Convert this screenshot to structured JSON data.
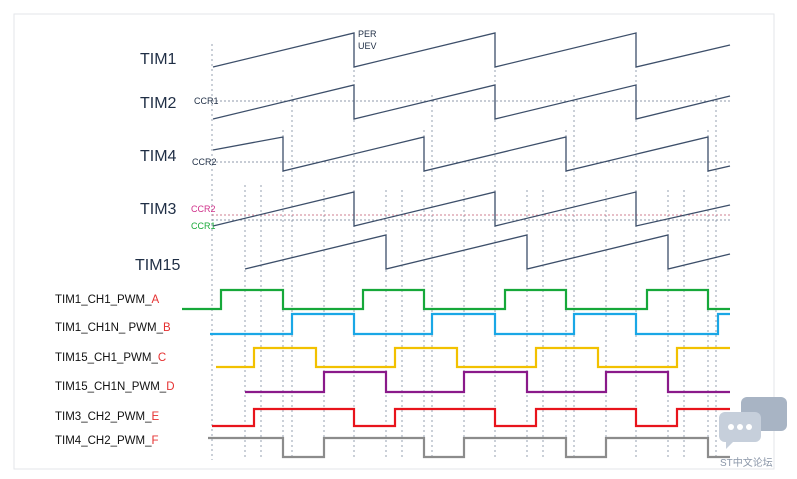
{
  "timers": {
    "tim1": "TIM1",
    "tim2": "TIM2",
    "tim4": "TIM4",
    "tim3": "TIM3",
    "tim15": "TIM15"
  },
  "annotations": {
    "per": "PER",
    "uev": "UEV",
    "tim2_ccr": "CCR1",
    "tim4_ccr": "CCR2",
    "tim3_ccr_a": "CCR2",
    "tim3_ccr_b": "CCR1"
  },
  "colors": {
    "sawtooth": "#3d4f6a",
    "ccr_magenta": "#d0308a",
    "ccr_green": "#1aaa3a",
    "pwm_a": "#16a83a",
    "pwm_b": "#1aa7e6",
    "pwm_c": "#f2c100",
    "pwm_d": "#8a1a8a",
    "pwm_e": "#e8141c",
    "pwm_f": "#8c8c8c",
    "suffix": "#e53030"
  },
  "signals": [
    {
      "name": "TIM1_CH1_PWM_",
      "suffix": "A"
    },
    {
      "name": "TIM1_CH1N_ PWM_",
      "suffix": "B"
    },
    {
      "name": "TIM15_CH1_PWM_",
      "suffix": "C"
    },
    {
      "name": "TIM15_CH1N_PWM_",
      "suffix": "D"
    },
    {
      "name": "TIM3_CH2_PWM_",
      "suffix": "E"
    },
    {
      "name": "TIM4_CH2_PWM_",
      "suffix": "F"
    }
  ],
  "watermark": {
    "text": "ST中文论坛",
    "icon": "chat-bubbles-icon"
  }
}
